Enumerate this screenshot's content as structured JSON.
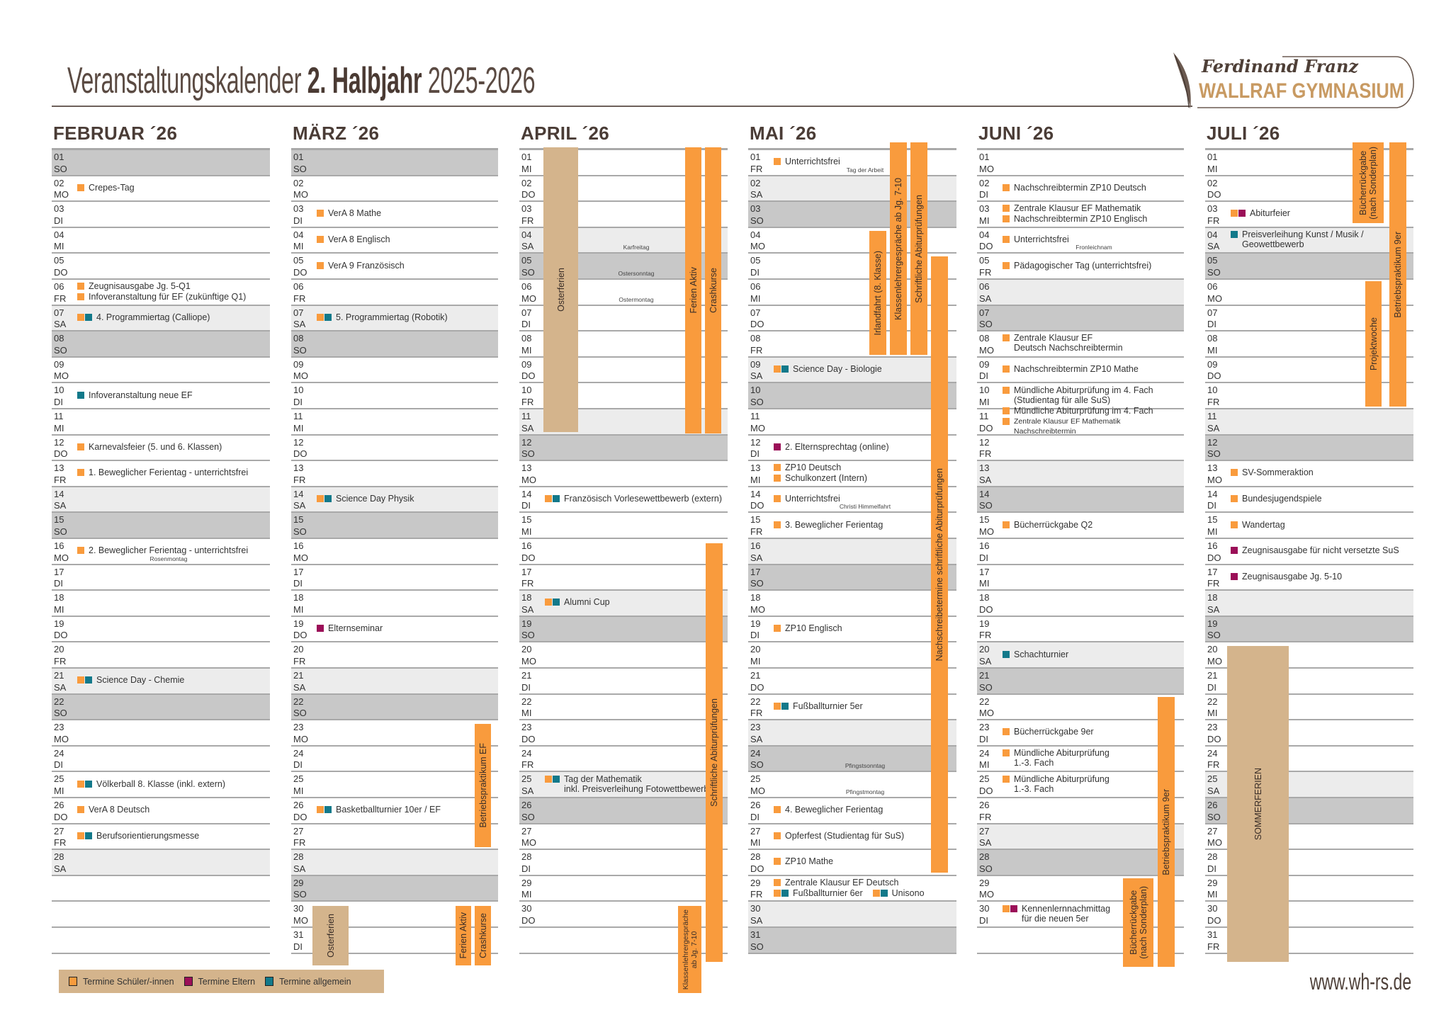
{
  "header": {
    "title_part1": "Veranstaltungskalender",
    "title_part2": "2. Halbjahr",
    "title_part3": "2025-2026"
  },
  "logo": {
    "line1": "Ferdinand Franz",
    "line2": "WALLRAF GYMNASIUM"
  },
  "colors": {
    "schueler": "#f99b3d",
    "eltern": "#9b0f58",
    "allgemein": "#12798a",
    "ferien": "#d4b48c",
    "saturday": "#ececec",
    "sunday": "#c8c8c8"
  },
  "legend": [
    {
      "key": "schueler",
      "label": "Termine Schüler/-innen"
    },
    {
      "key": "eltern",
      "label": "Termine Eltern"
    },
    {
      "key": "allgemein",
      "label": "Termine allgemein"
    }
  ],
  "footer": {
    "url": "www.wh-rs.de"
  },
  "months": [
    {
      "title": "FEBRUAR ´26",
      "day_numbers": [
        "01",
        "02",
        "03",
        "04",
        "05",
        "06",
        "07",
        "08",
        "09",
        "10",
        "11",
        "12",
        "13",
        "14",
        "15",
        "16",
        "17",
        "18",
        "19",
        "20",
        "21",
        "22",
        "23",
        "24",
        "25",
        "26",
        "27",
        "28"
      ],
      "weekdays": [
        "SO",
        "MO",
        "DI",
        "MI",
        "DO",
        "FR",
        "SA",
        "SO",
        "MO",
        "DI",
        "MI",
        "DO",
        "FR",
        "SA",
        "SO",
        "MO",
        "DI",
        "MI",
        "DO",
        "FR",
        "SA",
        "SO",
        "MO",
        "DI",
        "MI",
        "DO",
        "FR",
        "SA"
      ],
      "events": [
        {
          "day": 2,
          "text": "Crepes-Tag",
          "markers": [
            "schueler"
          ]
        },
        {
          "day": 6,
          "text": "Zeugnisausgabe Jg. 5-Q1",
          "markers": [
            "schueler"
          ]
        },
        {
          "day": 6,
          "text": "Infoveranstaltung für EF (zukünftige Q1)",
          "markers": [
            "schueler"
          ]
        },
        {
          "day": 7,
          "text": "4. Programmiertag (Calliope)",
          "markers": [
            "schueler",
            "allgemein"
          ]
        },
        {
          "day": 10,
          "text": "Infoveranstaltung neue EF",
          "markers": [
            "allgemein"
          ]
        },
        {
          "day": 12,
          "text": "Karnevalsfeier (5. und 6. Klassen)",
          "markers": [
            "schueler"
          ]
        },
        {
          "day": 13,
          "text": "1. Beweglicher Ferientag - unterrichtsfrei",
          "markers": [
            "schueler"
          ]
        },
        {
          "day": 16,
          "text": "2. Beweglicher Ferientag - unterrichtsfrei",
          "markers": [
            "schueler"
          ]
        },
        {
          "day": 21,
          "text": "Science Day - Chemie",
          "markers": [
            "schueler",
            "allgemein"
          ]
        },
        {
          "day": 25,
          "text": "Völkerball 8. Klasse (inkl. extern)",
          "markers": [
            "schueler",
            "allgemein"
          ]
        },
        {
          "day": 26,
          "text": "VerA 8 Deutsch",
          "markers": [
            "schueler"
          ]
        },
        {
          "day": 27,
          "text": "Berufsorientierungsmesse",
          "markers": [
            "schueler",
            "allgemein"
          ]
        }
      ],
      "notes": [
        {
          "day": 16,
          "text": "Rosenmontag"
        }
      ],
      "bars": []
    },
    {
      "title": "MÄRZ ´26",
      "day_numbers": [
        "01",
        "02",
        "03",
        "04",
        "05",
        "06",
        "07",
        "08",
        "09",
        "10",
        "11",
        "12",
        "13",
        "14",
        "15",
        "16",
        "17",
        "18",
        "19",
        "20",
        "21",
        "22",
        "23",
        "24",
        "25",
        "26",
        "27",
        "28",
        "29",
        "30",
        "31"
      ],
      "weekdays": [
        "SO",
        "MO",
        "DI",
        "MI",
        "DO",
        "FR",
        "SA",
        "SO",
        "MO",
        "DI",
        "MI",
        "DO",
        "FR",
        "SA",
        "SO",
        "MO",
        "DI",
        "MI",
        "DO",
        "FR",
        "SA",
        "SO",
        "MO",
        "DI",
        "MI",
        "DO",
        "FR",
        "SA",
        "SO",
        "MO",
        "DI"
      ],
      "events": [
        {
          "day": 3,
          "text": "VerA 8 Mathe",
          "markers": [
            "schueler"
          ]
        },
        {
          "day": 4,
          "text": "VerA 8 Englisch",
          "markers": [
            "schueler"
          ]
        },
        {
          "day": 5,
          "text": "VerA 9 Französisch",
          "markers": [
            "schueler"
          ]
        },
        {
          "day": 7,
          "text": "5. Programmiertag (Robotik)",
          "markers": [
            "schueler",
            "allgemein"
          ]
        },
        {
          "day": 14,
          "text": "Science Day Physik",
          "markers": [
            "schueler",
            "allgemein"
          ]
        },
        {
          "day": 19,
          "text": "Elternseminar",
          "markers": [
            "eltern"
          ]
        },
        {
          "day": 26,
          "text": "Basketballturnier 10er / EF",
          "markers": [
            "schueler",
            "allgemein"
          ]
        }
      ],
      "notes": [],
      "bars": [
        {
          "label": "Osterferien",
          "kind": "ferien"
        },
        {
          "label": "Ferien Aktiv",
          "kind": "schueler"
        },
        {
          "label": "Crashkurse",
          "kind": "schueler"
        },
        {
          "label": "Betriebspraktikum EF",
          "kind": "schueler"
        }
      ]
    },
    {
      "title": "APRIL ´26",
      "day_numbers": [
        "01",
        "02",
        "03",
        "04",
        "05",
        "06",
        "07",
        "08",
        "09",
        "10",
        "11",
        "12",
        "13",
        "14",
        "15",
        "16",
        "17",
        "18",
        "19",
        "20",
        "21",
        "22",
        "23",
        "24",
        "25",
        "26",
        "27",
        "28",
        "29",
        "30"
      ],
      "weekdays": [
        "MI",
        "DO",
        "FR",
        "SA",
        "SO",
        "MO",
        "DI",
        "MI",
        "DO",
        "FR",
        "SA",
        "SO",
        "MO",
        "DI",
        "MI",
        "DO",
        "FR",
        "SA",
        "SO",
        "MO",
        "DI",
        "MI",
        "DO",
        "FR",
        "SA",
        "SO",
        "MO",
        "DI",
        "MI",
        "DO"
      ],
      "events": [
        {
          "day": 14,
          "text": "Französisch Vorlesewettbewerb (extern)",
          "markers": [
            "schueler",
            "allgemein"
          ]
        },
        {
          "day": 18,
          "text": "Alumni Cup",
          "markers": [
            "schueler",
            "allgemein"
          ]
        },
        {
          "day": 25,
          "text": "Tag der Mathematik\ninkl. Preisverleihung Fotowettbewerb",
          "markers": [
            "schueler",
            "allgemein"
          ]
        }
      ],
      "notes": [
        {
          "day": 4,
          "text": "Karfreitag"
        },
        {
          "day": 5,
          "text": "Ostersonntag"
        },
        {
          "day": 6,
          "text": "Ostermontag"
        }
      ],
      "bars": [
        {
          "label": "Osterferien",
          "kind": "ferien"
        },
        {
          "label": "Ferien Aktiv",
          "kind": "schueler"
        },
        {
          "label": "Crashkurse",
          "kind": "schueler"
        },
        {
          "label": "Schriftliche Abiturprüfungen",
          "kind": "schueler"
        },
        {
          "label": "Klassenlehrergespräche\nab Jg. 7-10",
          "kind": "schueler"
        }
      ]
    },
    {
      "title": "MAI ´26",
      "day_numbers": [
        "01",
        "02",
        "03",
        "04",
        "05",
        "06",
        "07",
        "08",
        "09",
        "10",
        "11",
        "12",
        "13",
        "14",
        "15",
        "16",
        "17",
        "18",
        "19",
        "20",
        "21",
        "22",
        "23",
        "24",
        "25",
        "26",
        "27",
        "28",
        "29",
        "30",
        "31"
      ],
      "weekdays": [
        "FR",
        "SA",
        "SO",
        "MO",
        "DI",
        "MI",
        "DO",
        "FR",
        "SA",
        "SO",
        "MO",
        "DI",
        "MI",
        "DO",
        "FR",
        "SA",
        "SO",
        "MO",
        "DI",
        "MI",
        "DO",
        "FR",
        "SA",
        "SO",
        "MO",
        "DI",
        "MI",
        "DO",
        "FR",
        "SA",
        "SO"
      ],
      "events": [
        {
          "day": 1,
          "text": "Unterrichtsfrei",
          "markers": [
            "schueler"
          ]
        },
        {
          "day": 9,
          "text": "Science Day - Biologie",
          "markers": [
            "schueler",
            "allgemein"
          ]
        },
        {
          "day": 12,
          "text": "2. Elternsprechtag (online)",
          "markers": [
            "eltern"
          ]
        },
        {
          "day": 13,
          "text": "ZP10 Deutsch",
          "markers": [
            "schueler"
          ]
        },
        {
          "day": 13,
          "text": "Schulkonzert (Intern)",
          "markers": [
            "schueler"
          ]
        },
        {
          "day": 14,
          "text": "Unterrichtsfrei",
          "markers": [
            "schueler"
          ]
        },
        {
          "day": 15,
          "text": "3. Beweglicher Ferientag",
          "markers": [
            "schueler"
          ]
        },
        {
          "day": 19,
          "text": "ZP10 Englisch",
          "markers": [
            "schueler"
          ]
        },
        {
          "day": 22,
          "text": "Fußballturnier 5er",
          "markers": [
            "schueler",
            "allgemein"
          ]
        },
        {
          "day": 26,
          "text": "4. Beweglicher Ferientag",
          "markers": [
            "schueler"
          ]
        },
        {
          "day": 27,
          "text": "Opferfest (Studientag für SuS)",
          "markers": [
            "schueler"
          ]
        },
        {
          "day": 28,
          "text": "ZP10 Mathe",
          "markers": [
            "schueler"
          ]
        },
        {
          "day": 29,
          "text": "Zentrale Klausur EF Deutsch",
          "markers": [
            "schueler"
          ]
        },
        {
          "day": 29,
          "text": "Fußballturnier 6er",
          "markers": [
            "schueler",
            "allgemein"
          ]
        },
        {
          "day": 29,
          "text": "Unisono",
          "markers": [
            "schueler",
            "allgemein"
          ],
          "same_line": true
        }
      ],
      "notes": [
        {
          "day": 1,
          "text": "Tag der Arbeit"
        },
        {
          "day": 14,
          "text": "Christi Himmelfahrt"
        },
        {
          "day": 24,
          "text": "Pfingstsonntag"
        },
        {
          "day": 25,
          "text": "Pfingstmontag"
        }
      ],
      "bars": [
        {
          "label": "Irlandfahrt (8. Klasse)",
          "kind": "schueler"
        },
        {
          "label": "Klassenlehrergespräche ab Jg. 7-10",
          "kind": "schueler"
        },
        {
          "label": "Schriftliche Abiturprüfungen",
          "kind": "schueler"
        },
        {
          "label": "Nachschreibetermine schriftliche Abiturprüfungen",
          "kind": "schueler"
        }
      ]
    },
    {
      "title": "JUNI ´26",
      "day_numbers": [
        "01",
        "02",
        "03",
        "04",
        "05",
        "06",
        "07",
        "08",
        "09",
        "10",
        "11",
        "12",
        "13",
        "14",
        "15",
        "16",
        "17",
        "18",
        "19",
        "20",
        "21",
        "22",
        "23",
        "24",
        "25",
        "26",
        "27",
        "28",
        "29",
        "30"
      ],
      "weekdays": [
        "MO",
        "DI",
        "MI",
        "DO",
        "FR",
        "SA",
        "SO",
        "MO",
        "DI",
        "MI",
        "DO",
        "FR",
        "SA",
        "SO",
        "MO",
        "DI",
        "MI",
        "DO",
        "FR",
        "SA",
        "SO",
        "MO",
        "DI",
        "MI",
        "DO",
        "FR",
        "SA",
        "SO",
        "MO",
        "DI"
      ],
      "events": [
        {
          "day": 2,
          "text": "Nachschreibtermin ZP10 Deutsch",
          "markers": [
            "schueler"
          ]
        },
        {
          "day": 3,
          "text": "Zentrale Klausur EF Mathematik",
          "markers": [
            "schueler"
          ]
        },
        {
          "day": 3,
          "text": "Nachschreibtermin ZP10 Englisch",
          "markers": [
            "schueler"
          ]
        },
        {
          "day": 4,
          "text": "Unterrichtsfrei",
          "markers": [
            "schueler"
          ]
        },
        {
          "day": 5,
          "text": "Pädagogischer Tag (unterrichtsfrei)",
          "markers": [
            "schueler"
          ]
        },
        {
          "day": 8,
          "text": "Zentrale Klausur EF\nDeutsch Nachschreibtermin",
          "markers": [
            "schueler"
          ]
        },
        {
          "day": 9,
          "text": "Nachschreibtermin ZP10 Mathe",
          "markers": [
            "schueler"
          ]
        },
        {
          "day": 10,
          "text": "Mündliche Abiturprüfung im 4. Fach\n(Studientag für alle SuS)",
          "markers": [
            "schueler"
          ]
        },
        {
          "day": 11,
          "text": "Mündliche Abiturprüfung im 4. Fach",
          "markers": [
            "schueler"
          ]
        },
        {
          "day": 11,
          "text": "Zentrale Klausur EF Mathematik Nachschreibtermin",
          "markers": [
            "schueler"
          ],
          "small": true
        },
        {
          "day": 15,
          "text": "Bücherrückgabe Q2",
          "markers": [
            "schueler"
          ]
        },
        {
          "day": 20,
          "text": "Schachturnier",
          "markers": [
            "allgemein"
          ]
        },
        {
          "day": 23,
          "text": "Bücherrückgabe 9er",
          "markers": [
            "schueler"
          ]
        },
        {
          "day": 24,
          "text": "Mündliche Abiturprüfung\n1.-3. Fach",
          "markers": [
            "schueler"
          ]
        },
        {
          "day": 25,
          "text": "Mündliche Abiturprüfung\n1.-3. Fach",
          "markers": [
            "schueler"
          ]
        },
        {
          "day": 30,
          "text": "Kennenlernnachmittag\nfür die neuen 5er",
          "markers": [
            "schueler",
            "eltern"
          ]
        }
      ],
      "notes": [
        {
          "day": 4,
          "text": "Fronleichnam"
        }
      ],
      "bars": [
        {
          "label": "Betriebspraktikum 9er",
          "kind": "schueler"
        },
        {
          "label": "Bücherrückgabe\n(nach Sonderplan)",
          "kind": "schueler"
        }
      ]
    },
    {
      "title": "JULI ´26",
      "day_numbers": [
        "01",
        "02",
        "03",
        "04",
        "05",
        "06",
        "07",
        "08",
        "09",
        "10",
        "11",
        "12",
        "13",
        "14",
        "15",
        "16",
        "17",
        "18",
        "19",
        "20",
        "21",
        "22",
        "23",
        "24",
        "25",
        "26",
        "27",
        "28",
        "29",
        "30",
        "31"
      ],
      "weekdays": [
        "MI",
        "DO",
        "FR",
        "SA",
        "SO",
        "MO",
        "DI",
        "MI",
        "DO",
        "FR",
        "SA",
        "SO",
        "MO",
        "DI",
        "MI",
        "DO",
        "FR",
        "SA",
        "SO",
        "MO",
        "DI",
        "MI",
        "DO",
        "FR",
        "SA",
        "SO",
        "MO",
        "DI",
        "MI",
        "DO",
        "FR"
      ],
      "events": [
        {
          "day": 3,
          "text": "Abiturfeier",
          "markers": [
            "schueler",
            "eltern"
          ]
        },
        {
          "day": 4,
          "text": "Preisverleihung Kunst / Musik /\nGeowettbewerb",
          "markers": [
            "allgemein"
          ]
        },
        {
          "day": 13,
          "text": "SV-Sommeraktion",
          "markers": [
            "schueler"
          ]
        },
        {
          "day": 14,
          "text": "Bundesjugendspiele",
          "markers": [
            "schueler"
          ]
        },
        {
          "day": 15,
          "text": "Wandertag",
          "markers": [
            "schueler"
          ]
        },
        {
          "day": 16,
          "text": "Zeugnisausgabe für nicht versetzte SuS",
          "markers": [
            "eltern"
          ]
        },
        {
          "day": 17,
          "text": "Zeugnisausgabe Jg. 5-10",
          "markers": [
            "eltern"
          ]
        }
      ],
      "notes": [],
      "bars": [
        {
          "label": "Bücherrückgabe\n(nach Sonderplan)",
          "kind": "schueler"
        },
        {
          "label": "Betriebspraktikum 9er",
          "kind": "schueler"
        },
        {
          "label": "Projektwoche",
          "kind": "schueler"
        },
        {
          "label": "SOMMERFERIEN",
          "kind": "ferien"
        }
      ]
    }
  ]
}
